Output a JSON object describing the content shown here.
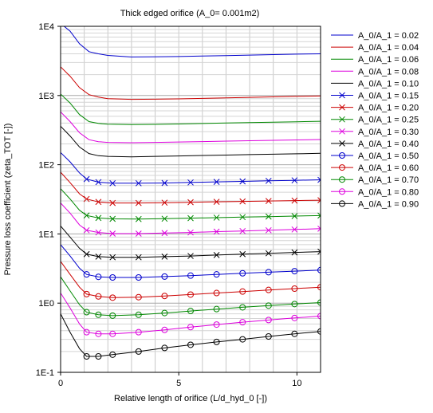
{
  "chart_data": {
    "type": "line",
    "title": "Thick edged orifice (A_0= 0.001m2)",
    "xlabel": "Relative length of orifice (L/d_hyd_0 [-])",
    "ylabel": "Pressure loss coefficient (zeta_TOT [-])",
    "xlim": [
      0,
      11
    ],
    "ylim": [
      0.1,
      10000
    ],
    "yscale": "log",
    "grid": true,
    "legend_position": "right",
    "x_ticks": [
      "0",
      "5",
      "10"
    ],
    "y_ticks": [
      "1E-1",
      "1E0",
      "1E1",
      "1E2",
      "1E3",
      "1E4"
    ],
    "series": [
      {
        "name": "A_0/A_1 = 0.02",
        "color": "#0000cc",
        "marker": "none",
        "x": [
          0,
          0.4,
          0.8,
          1.2,
          1.6,
          2,
          3,
          4,
          5,
          6,
          7,
          8,
          9,
          10,
          11
        ],
        "y": [
          11000,
          8500,
          5600,
          4300,
          4000,
          3800,
          3600,
          3620,
          3660,
          3720,
          3780,
          3840,
          3900,
          3960,
          4000
        ]
      },
      {
        "name": "A_0/A_1 = 0.04",
        "color": "#cc0000",
        "marker": "none",
        "x": [
          0,
          0.4,
          0.8,
          1.2,
          1.6,
          2,
          3,
          4,
          5,
          6,
          7,
          8,
          9,
          10,
          11
        ],
        "y": [
          2600,
          1900,
          1300,
          1030,
          950,
          900,
          880,
          885,
          895,
          910,
          925,
          940,
          955,
          970,
          985
        ]
      },
      {
        "name": "A_0/A_1 = 0.06",
        "color": "#008800",
        "marker": "none",
        "x": [
          0,
          0.4,
          0.8,
          1.2,
          1.6,
          2,
          3,
          4,
          5,
          6,
          7,
          8,
          9,
          10,
          11
        ],
        "y": [
          1050,
          780,
          530,
          420,
          395,
          385,
          380,
          383,
          388,
          394,
          400,
          406,
          412,
          418,
          424
        ]
      },
      {
        "name": "A_0/A_1 = 0.08",
        "color": "#dd00dd",
        "marker": "none",
        "x": [
          0,
          0.4,
          0.8,
          1.2,
          1.6,
          2,
          3,
          4,
          5,
          6,
          7,
          8,
          9,
          10,
          11
        ],
        "y": [
          580,
          420,
          290,
          230,
          215,
          210,
          208,
          210,
          213,
          216,
          219,
          222,
          225,
          228,
          231
        ]
      },
      {
        "name": "A_0/A_1 = 0.10",
        "color": "#000000",
        "marker": "none",
        "x": [
          0,
          0.4,
          0.8,
          1.2,
          1.6,
          2,
          3,
          4,
          5,
          6,
          7,
          8,
          9,
          10,
          11
        ],
        "y": [
          360,
          260,
          180,
          145,
          135,
          132,
          130,
          132,
          134,
          136,
          138,
          140,
          142,
          144,
          146
        ]
      },
      {
        "name": "A_0/A_1 = 0.15",
        "color": "#0000cc",
        "marker": "x",
        "x": [
          0,
          0.4,
          0.8,
          1.1,
          1.6,
          2.2,
          3.3,
          4.4,
          5.5,
          6.6,
          7.7,
          8.8,
          9.9,
          11
        ],
        "y": [
          150,
          110,
          76,
          62,
          56,
          54,
          54,
          54.5,
          55.5,
          56.5,
          57.5,
          58.5,
          59.5,
          60.5
        ]
      },
      {
        "name": "A_0/A_1 = 0.20",
        "color": "#cc0000",
        "marker": "x",
        "x": [
          0,
          0.4,
          0.8,
          1.1,
          1.6,
          2.2,
          3.3,
          4.4,
          5.5,
          6.6,
          7.7,
          8.8,
          9.9,
          11
        ],
        "y": [
          78,
          55,
          38,
          32,
          29,
          28,
          28,
          28.3,
          28.7,
          29.1,
          29.5,
          29.9,
          30.3,
          30.7
        ]
      },
      {
        "name": "A_0/A_1 = 0.25",
        "color": "#008800",
        "marker": "x",
        "x": [
          0,
          0.4,
          0.8,
          1.1,
          1.6,
          2.2,
          3.3,
          4.4,
          5.5,
          6.6,
          7.7,
          8.8,
          9.9,
          11
        ],
        "y": [
          45,
          32,
          22,
          18.5,
          17,
          16.5,
          16.4,
          16.6,
          16.9,
          17.2,
          17.5,
          17.8,
          18.1,
          18.4
        ]
      },
      {
        "name": "A_0/A_1 = 0.30",
        "color": "#dd00dd",
        "marker": "x",
        "x": [
          0,
          0.4,
          0.8,
          1.1,
          1.6,
          2.2,
          3.3,
          4.4,
          5.5,
          6.6,
          7.7,
          8.8,
          9.9,
          11
        ],
        "y": [
          28,
          20,
          13.5,
          11.3,
          10.5,
          10.1,
          10.1,
          10.3,
          10.5,
          10.8,
          11.0,
          11.3,
          11.6,
          11.9
        ]
      },
      {
        "name": "A_0/A_1 = 0.40",
        "color": "#000000",
        "marker": "x",
        "x": [
          0,
          0.4,
          0.8,
          1.1,
          1.6,
          2.2,
          3.3,
          4.4,
          5.5,
          6.6,
          7.7,
          8.8,
          9.9,
          11
        ],
        "y": [
          13,
          9,
          6.2,
          5.1,
          4.7,
          4.6,
          4.6,
          4.7,
          4.8,
          4.95,
          5.1,
          5.25,
          5.4,
          5.55
        ]
      },
      {
        "name": "A_0/A_1 = 0.50",
        "color": "#0000cc",
        "marker": "circle",
        "x": [
          0,
          0.4,
          0.8,
          1.1,
          1.6,
          2.2,
          3.3,
          4.4,
          5.5,
          6.6,
          7.7,
          8.8,
          9.9,
          11
        ],
        "y": [
          7,
          4.8,
          3.2,
          2.6,
          2.4,
          2.35,
          2.35,
          2.42,
          2.5,
          2.6,
          2.7,
          2.8,
          2.9,
          3.0
        ]
      },
      {
        "name": "A_0/A_1 = 0.60",
        "color": "#cc0000",
        "marker": "circle",
        "x": [
          0,
          0.4,
          0.8,
          1.1,
          1.6,
          2.2,
          3.3,
          4.4,
          5.5,
          6.6,
          7.7,
          8.8,
          9.9,
          11
        ],
        "y": [
          4,
          2.6,
          1.7,
          1.35,
          1.25,
          1.2,
          1.22,
          1.27,
          1.33,
          1.4,
          1.47,
          1.55,
          1.62,
          1.7
        ]
      },
      {
        "name": "A_0/A_1 = 0.70",
        "color": "#008800",
        "marker": "circle",
        "x": [
          0,
          0.4,
          0.8,
          1.1,
          1.6,
          2.2,
          3.3,
          4.4,
          5.5,
          6.6,
          7.7,
          8.8,
          9.9,
          11
        ],
        "y": [
          2.4,
          1.5,
          0.95,
          0.74,
          0.68,
          0.66,
          0.68,
          0.72,
          0.77,
          0.82,
          0.87,
          0.92,
          0.97,
          1.02
        ]
      },
      {
        "name": "A_0/A_1 = 0.80",
        "color": "#dd00dd",
        "marker": "circle",
        "x": [
          0,
          0.4,
          0.8,
          1.1,
          1.6,
          2.2,
          3.3,
          4.4,
          5.5,
          6.6,
          7.7,
          8.8,
          9.9,
          11
        ],
        "y": [
          1.4,
          0.85,
          0.5,
          0.38,
          0.36,
          0.36,
          0.38,
          0.41,
          0.45,
          0.49,
          0.53,
          0.57,
          0.61,
          0.65
        ]
      },
      {
        "name": "A_0/A_1 = 0.90",
        "color": "#000000",
        "marker": "circle",
        "x": [
          0,
          0.4,
          0.8,
          1.1,
          1.6,
          2.2,
          3.3,
          4.4,
          5.5,
          6.6,
          7.7,
          8.8,
          9.9,
          11
        ],
        "y": [
          0.7,
          0.38,
          0.22,
          0.17,
          0.17,
          0.18,
          0.2,
          0.225,
          0.25,
          0.275,
          0.3,
          0.33,
          0.36,
          0.39
        ]
      }
    ]
  }
}
